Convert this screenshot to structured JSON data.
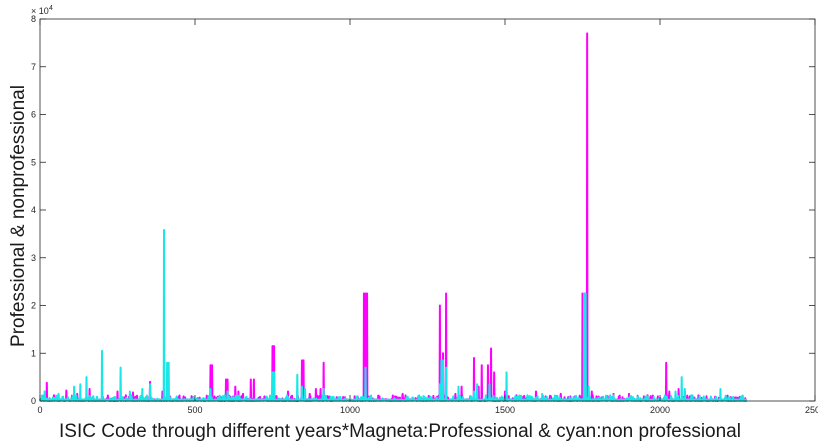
{
  "chart_data": {
    "type": "line",
    "title": "",
    "xlabel": "ISIC Code through different years*Magneta:Professional & cyan:non professional",
    "ylabel": "Professional & nonprofessional",
    "y_scale_label_base": "× 10",
    "y_scale_label_exp": "4",
    "xlim": [
      0,
      2500
    ],
    "ylim": [
      0,
      80000
    ],
    "x_ticks": [
      0,
      500,
      1000,
      1500,
      2000,
      2500
    ],
    "x_tick_labels": [
      "0",
      "500",
      "1000",
      "1500",
      "2000",
      "2500"
    ],
    "y_ticks": [
      0,
      10000,
      20000,
      30000,
      40000,
      50000,
      60000,
      70000,
      80000
    ],
    "y_tick_labels": [
      "0",
      "1",
      "2",
      "3",
      "4",
      "5",
      "6",
      "7",
      "8"
    ],
    "grid": false,
    "box": true,
    "n_points": 2280,
    "series": [
      {
        "color": "#ff00ff",
        "peaks": [
          [
            22,
            3800
          ],
          [
            45,
            1200
          ],
          [
            85,
            2200
          ],
          [
            120,
            1500
          ],
          [
            160,
            2500
          ],
          [
            200,
            900
          ],
          [
            250,
            2000
          ],
          [
            300,
            1800
          ],
          [
            355,
            4000
          ],
          [
            395,
            2000
          ],
          [
            410,
            1200
          ],
          [
            550,
            7500
          ],
          [
            555,
            7500
          ],
          [
            600,
            4500
          ],
          [
            605,
            4500
          ],
          [
            630,
            3000
          ],
          [
            640,
            2000
          ],
          [
            655,
            1500
          ],
          [
            680,
            4500
          ],
          [
            690,
            4500
          ],
          [
            750,
            11500
          ],
          [
            755,
            11500
          ],
          [
            800,
            2000
          ],
          [
            845,
            8500
          ],
          [
            850,
            8500
          ],
          [
            870,
            1500
          ],
          [
            890,
            2500
          ],
          [
            905,
            2500
          ],
          [
            915,
            8000
          ],
          [
            1045,
            22500
          ],
          [
            1050,
            22500
          ],
          [
            1055,
            22500
          ],
          [
            1170,
            1500
          ],
          [
            1290,
            20000
          ],
          [
            1300,
            10000
          ],
          [
            1310,
            22500
          ],
          [
            1340,
            1500
          ],
          [
            1360,
            3000
          ],
          [
            1400,
            9000
          ],
          [
            1415,
            3000
          ],
          [
            1425,
            7500
          ],
          [
            1445,
            7500
          ],
          [
            1455,
            11000
          ],
          [
            1465,
            6000
          ],
          [
            1500,
            2000
          ],
          [
            1600,
            2000
          ],
          [
            1680,
            1500
          ],
          [
            1750,
            22500
          ],
          [
            1758,
            22500
          ],
          [
            1765,
            77000
          ],
          [
            1780,
            2000
          ],
          [
            1850,
            1500
          ],
          [
            1900,
            1500
          ],
          [
            1960,
            1200
          ],
          [
            2020,
            8000
          ],
          [
            2030,
            2000
          ],
          [
            2060,
            2500
          ],
          [
            2080,
            2000
          ],
          [
            2150,
            1000
          ]
        ]
      },
      {
        "color": "#19e6e6",
        "peaks": [
          [
            15,
            2000
          ],
          [
            60,
            1500
          ],
          [
            110,
            3000
          ],
          [
            130,
            3500
          ],
          [
            150,
            5000
          ],
          [
            200,
            10500
          ],
          [
            260,
            7000
          ],
          [
            290,
            2000
          ],
          [
            330,
            2500
          ],
          [
            355,
            3500
          ],
          [
            400,
            35800
          ],
          [
            410,
            8000
          ],
          [
            415,
            8000
          ],
          [
            550,
            2500
          ],
          [
            605,
            2000
          ],
          [
            750,
            6000
          ],
          [
            755,
            6000
          ],
          [
            830,
            5500
          ],
          [
            845,
            3000
          ],
          [
            855,
            2500
          ],
          [
            915,
            2500
          ],
          [
            1050,
            7000
          ],
          [
            1290,
            3500
          ],
          [
            1295,
            8500
          ],
          [
            1300,
            8500
          ],
          [
            1310,
            7000
          ],
          [
            1350,
            3000
          ],
          [
            1400,
            2000
          ],
          [
            1410,
            3500
          ],
          [
            1450,
            3500
          ],
          [
            1505,
            6000
          ],
          [
            1620,
            1500
          ],
          [
            1755,
            22500
          ],
          [
            1760,
            22500
          ],
          [
            1770,
            3000
          ],
          [
            2050,
            2000
          ],
          [
            2070,
            5000
          ],
          [
            2080,
            2500
          ],
          [
            2195,
            2500
          ]
        ]
      }
    ]
  }
}
